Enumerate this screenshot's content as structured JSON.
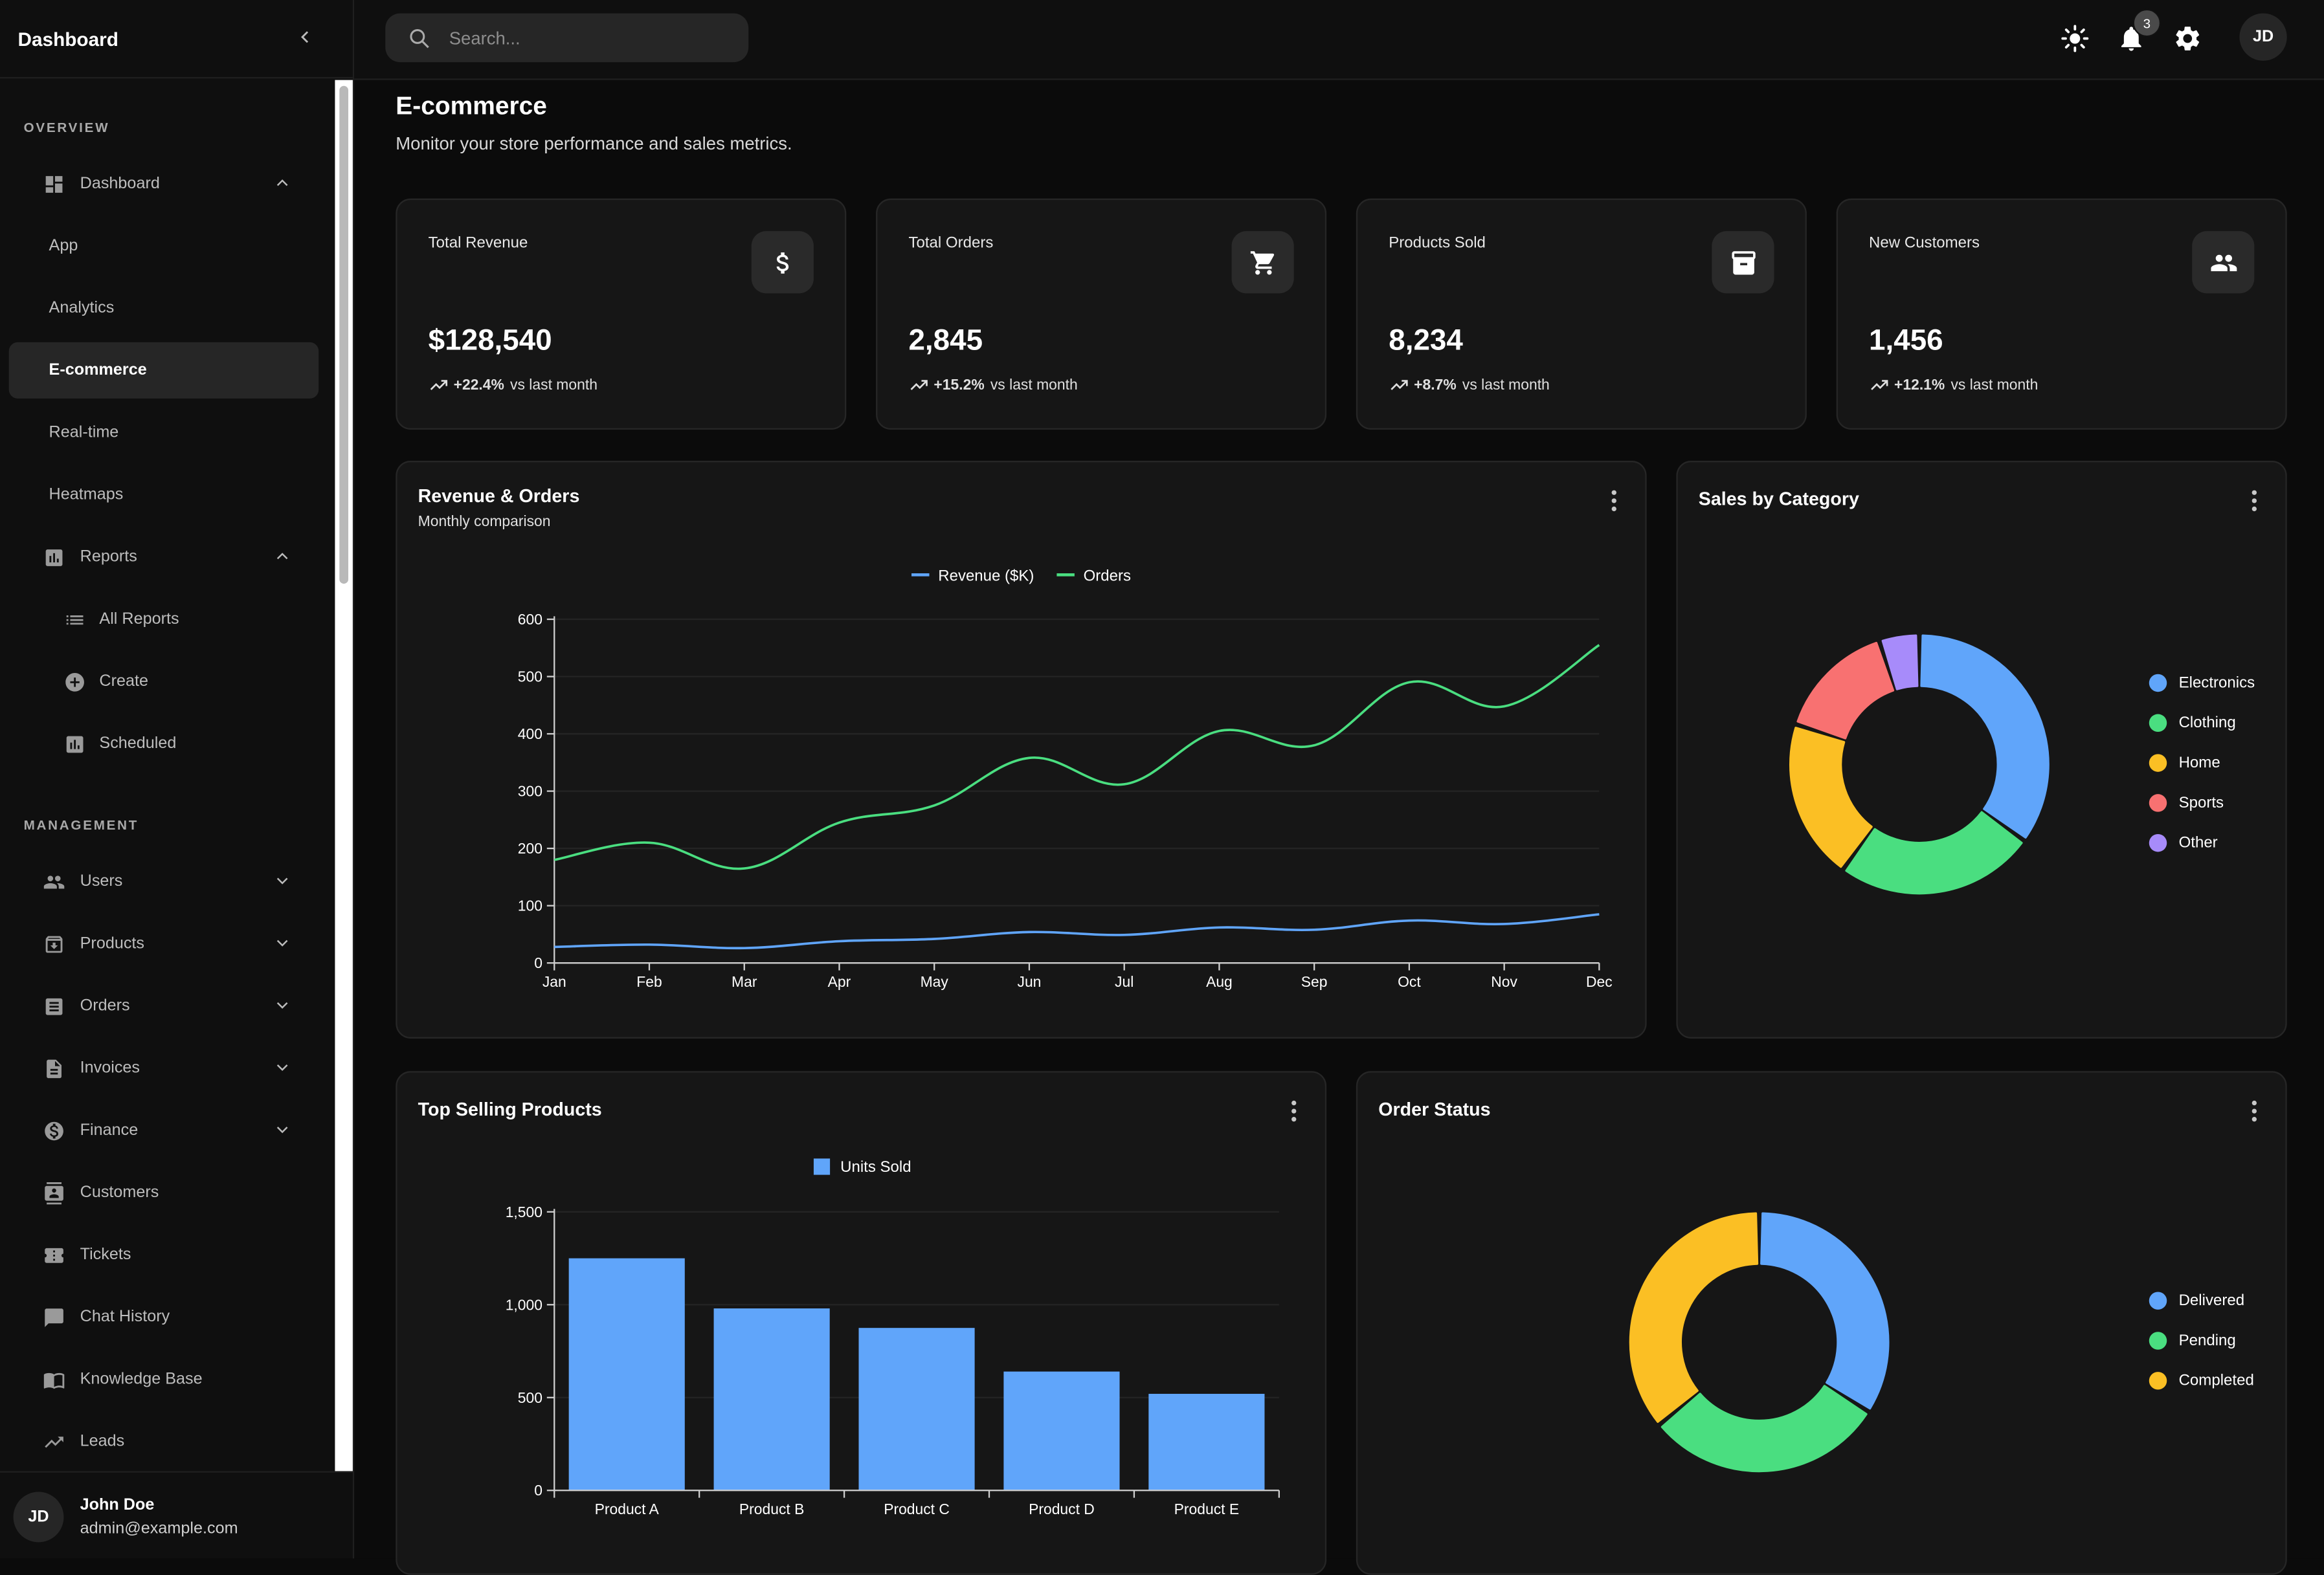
{
  "sidebar": {
    "title": "Dashboard",
    "sections": {
      "overview": "OVERVIEW",
      "management": "MANAGEMENT"
    },
    "items": {
      "dashboard": "Dashboard",
      "app": "App",
      "analytics": "Analytics",
      "ecommerce": "E-commerce",
      "realtime": "Real-time",
      "heatmaps": "Heatmaps",
      "reports": "Reports",
      "all_reports": "All Reports",
      "create": "Create",
      "scheduled": "Scheduled",
      "users": "Users",
      "products": "Products",
      "orders": "Orders",
      "invoices": "Invoices",
      "finance": "Finance",
      "customers": "Customers",
      "tickets": "Tickets",
      "chat_history": "Chat History",
      "knowledge_base": "Knowledge Base",
      "leads": "Leads"
    },
    "user": {
      "initials": "JD",
      "name": "John Doe",
      "email": "admin@example.com"
    }
  },
  "topbar": {
    "search_placeholder": "Search...",
    "notification_count": "3",
    "avatar_initials": "JD"
  },
  "page": {
    "title": "E-commerce",
    "subtitle": "Monitor your store performance and sales metrics."
  },
  "stats": [
    {
      "title": "Total Revenue",
      "value": "$128,540",
      "delta": "+22.4%",
      "delta_label": "vs last month",
      "icon": "dollar-icon"
    },
    {
      "title": "Total Orders",
      "value": "2,845",
      "delta": "+15.2%",
      "delta_label": "vs last month",
      "icon": "cart-icon"
    },
    {
      "title": "Products Sold",
      "value": "8,234",
      "delta": "+8.7%",
      "delta_label": "vs last month",
      "icon": "archive-icon"
    },
    {
      "title": "New Customers",
      "value": "1,456",
      "delta": "+12.1%",
      "delta_label": "vs last month",
      "icon": "people-icon"
    }
  ],
  "cards": {
    "revenue_orders": {
      "title": "Revenue & Orders",
      "subtitle": "Monthly comparison"
    },
    "sales_category": {
      "title": "Sales by Category"
    },
    "top_products": {
      "title": "Top Selling Products"
    },
    "order_status": {
      "title": "Order Status"
    }
  },
  "colors": {
    "blue": "#60a5fa",
    "green": "#4ade80",
    "amber": "#fbbf24",
    "red": "#f87171",
    "purple": "#a78bfa"
  },
  "chart_data": [
    {
      "type": "line",
      "title": "Revenue & Orders",
      "subtitle": "Monthly comparison",
      "categories": [
        "Jan",
        "Feb",
        "Mar",
        "Apr",
        "May",
        "Jun",
        "Jul",
        "Aug",
        "Sep",
        "Oct",
        "Nov",
        "Dec"
      ],
      "series": [
        {
          "name": "Revenue ($K)",
          "color": "#60a5fa",
          "values": [
            28,
            32,
            26,
            38,
            42,
            54,
            49,
            62,
            58,
            74,
            68,
            85
          ]
        },
        {
          "name": "Orders",
          "color": "#4ade80",
          "values": [
            180,
            210,
            165,
            245,
            275,
            358,
            312,
            405,
            380,
            490,
            448,
            555
          ]
        }
      ],
      "ylim": [
        0,
        600
      ],
      "yticks": [
        0,
        100,
        200,
        300,
        400,
        500,
        600
      ],
      "legend": "top-center",
      "grid": true
    },
    {
      "type": "pie",
      "title": "Sales by Category",
      "donut": true,
      "labels": [
        "Electronics",
        "Clothing",
        "Home",
        "Sports",
        "Other"
      ],
      "values": [
        35,
        25,
        20,
        15,
        5
      ],
      "colors": [
        "#60a5fa",
        "#4ade80",
        "#fbbf24",
        "#f87171",
        "#a78bfa"
      ],
      "legend": "right"
    },
    {
      "type": "bar",
      "title": "Top Selling Products",
      "categories": [
        "Product A",
        "Product B",
        "Product C",
        "Product D",
        "Product E"
      ],
      "series": [
        {
          "name": "Units Sold",
          "color": "#60a5fa",
          "values": [
            1250,
            980,
            875,
            640,
            520
          ]
        }
      ],
      "ylim": [
        0,
        1500
      ],
      "yticks": [
        0,
        500,
        1000,
        1500
      ],
      "ytick_labels": [
        "0",
        "500",
        "1,000",
        "1,500"
      ],
      "legend": "top-center",
      "grid": true
    },
    {
      "type": "pie",
      "title": "Order Status",
      "donut": true,
      "labels": [
        "Delivered",
        "Pending",
        "Completed"
      ],
      "values": [
        34,
        30,
        36
      ],
      "colors": [
        "#60a5fa",
        "#4ade80",
        "#fbbf24"
      ],
      "legend": "right"
    }
  ]
}
